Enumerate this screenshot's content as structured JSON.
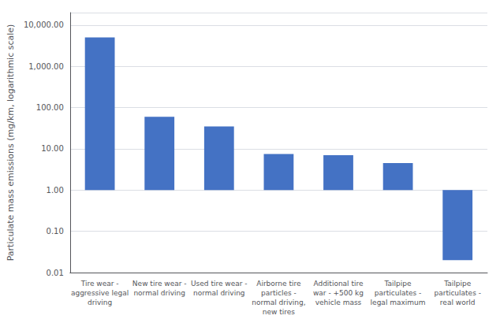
{
  "chart_data": {
    "type": "bar",
    "categories": [
      "Tire wear -\naggressive legal\ndriving",
      "New tire wear -\nnormal driving",
      "Used tire wear -\nnormal driving",
      "Airborne tire\nparticles -\nnormal driving,\nnew tires",
      "Additional tire\nwar - +500 kg\nvehicle mass",
      "Tailpipe\nparticulates -\nlegal maximum",
      "Tailpipe\nparticulates -\nreal world"
    ],
    "values": [
      5000,
      60,
      35,
      7.5,
      7.0,
      4.5,
      1.0
    ],
    "bottoms": [
      1.0,
      1.0,
      1.0,
      1.0,
      1.0,
      1.0,
      0.02
    ],
    "color": "#4472C4",
    "ylabel": "Particulate mass emissions (mg/km, logarithmic scale)",
    "ylim": [
      0.01,
      20000
    ],
    "yticks": [
      0.01,
      {
        "value": 0.1,
        "label": "0.10"
      },
      {
        "value": 1,
        "label": "1.00"
      },
      {
        "value": 10,
        "label": "10.00"
      },
      {
        "value": 100,
        "label": "100.00"
      },
      {
        "value": 1000,
        "label": "1,000.00"
      },
      {
        "value": 10000,
        "label": "10,000.00"
      }
    ],
    "log": "y",
    "grid": true
  }
}
